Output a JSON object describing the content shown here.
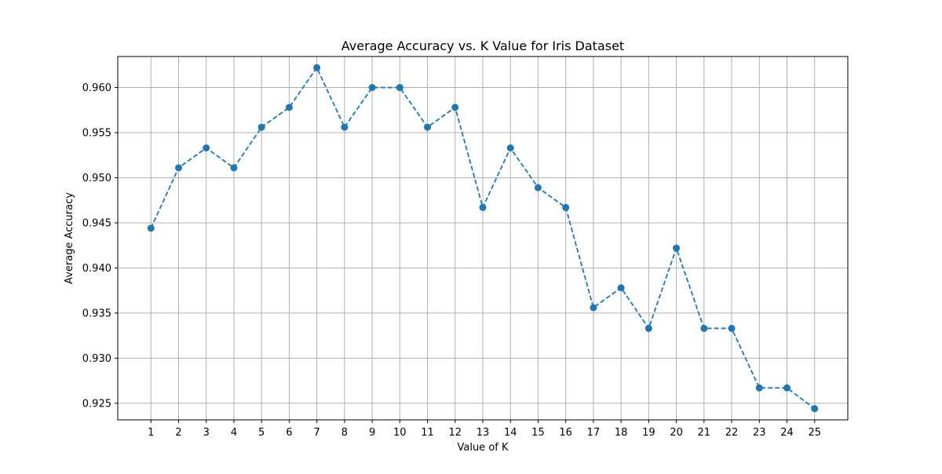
{
  "chart_data": {
    "type": "line",
    "title": "Average Accuracy vs. K Value for Iris Dataset",
    "xlabel": "Value of K",
    "ylabel": "Average Accuracy",
    "x": [
      1,
      2,
      3,
      4,
      5,
      6,
      7,
      8,
      9,
      10,
      11,
      12,
      13,
      14,
      15,
      16,
      17,
      18,
      19,
      20,
      21,
      22,
      23,
      24,
      25
    ],
    "series": [
      {
        "values": [
          0.9444,
          0.9511,
          0.9533,
          0.9511,
          0.9556,
          0.9578,
          0.9622,
          0.9556,
          0.96,
          0.96,
          0.9556,
          0.9578,
          0.9467,
          0.9533,
          0.9489,
          0.9467,
          0.9356,
          0.9378,
          0.9333,
          0.9422,
          0.9333,
          0.9333,
          0.9267,
          0.9267,
          0.9244
        ],
        "color": "#1f77b4",
        "line_style": "dashed",
        "marker": "circle"
      }
    ],
    "xticks": [
      "1",
      "2",
      "3",
      "4",
      "5",
      "6",
      "7",
      "8",
      "9",
      "10",
      "11",
      "12",
      "13",
      "14",
      "15",
      "16",
      "17",
      "18",
      "19",
      "20",
      "21",
      "22",
      "23",
      "24",
      "25"
    ],
    "yticks": [
      "0.925",
      "0.930",
      "0.935",
      "0.940",
      "0.945",
      "0.950",
      "0.955",
      "0.960"
    ],
    "xlim": [
      -0.2,
      26.2
    ],
    "ylim": [
      0.92316,
      0.96344
    ],
    "grid": true
  }
}
